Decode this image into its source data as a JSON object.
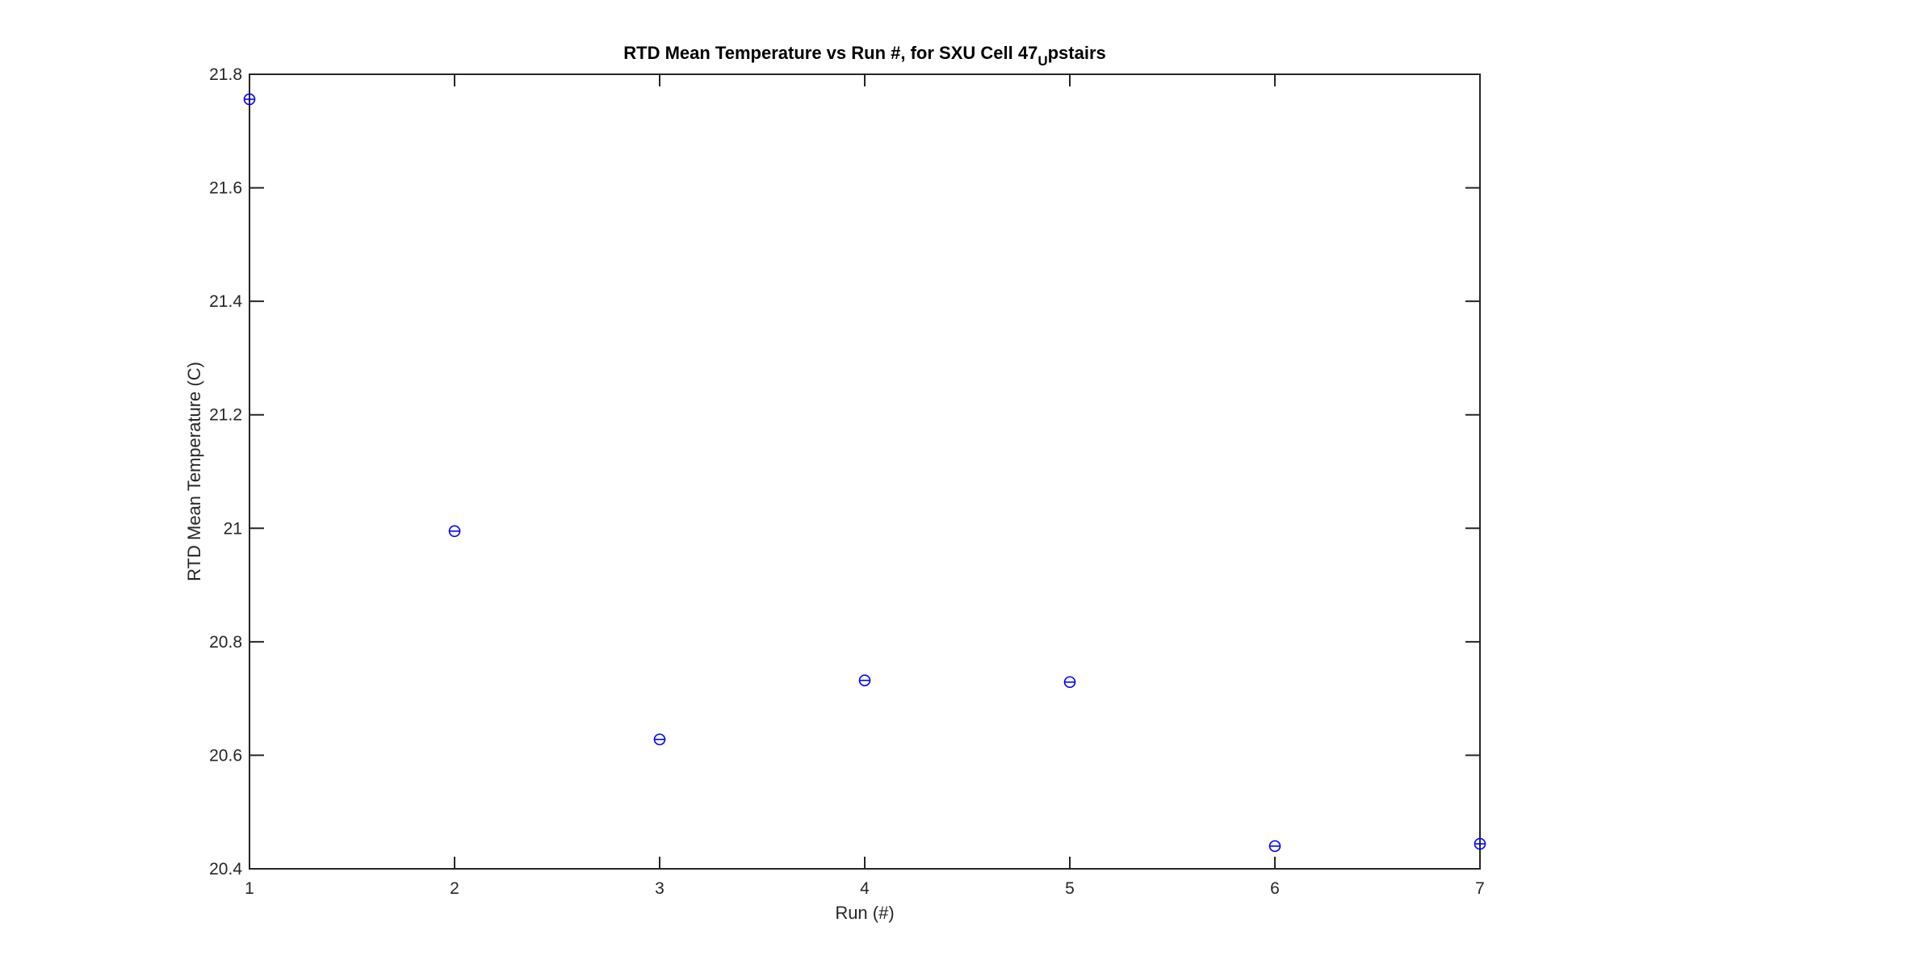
{
  "chart_data": {
    "type": "scatter",
    "title": "RTD Mean Temperature vs Run #, for SXU Cell 47",
    "title_subscript": "U",
    "title_suffix": "pstairs",
    "xlabel": "Run (#)",
    "ylabel": "RTD Mean Temperature (C)",
    "xlim": [
      1,
      7
    ],
    "ylim": [
      20.4,
      21.8
    ],
    "xticks": [
      "1",
      "2",
      "3",
      "4",
      "5",
      "6",
      "7"
    ],
    "yticks": [
      "20.4",
      "20.6",
      "20.8",
      "21",
      "21.2",
      "21.4",
      "21.6",
      "21.8"
    ],
    "grid": false,
    "marker": "circle-plus",
    "marker_color": "#0000ff",
    "x": [
      1,
      2,
      3,
      4,
      5,
      6,
      7
    ],
    "y": [
      21.756,
      20.995,
      20.628,
      20.732,
      20.729,
      20.44,
      20.444
    ]
  }
}
